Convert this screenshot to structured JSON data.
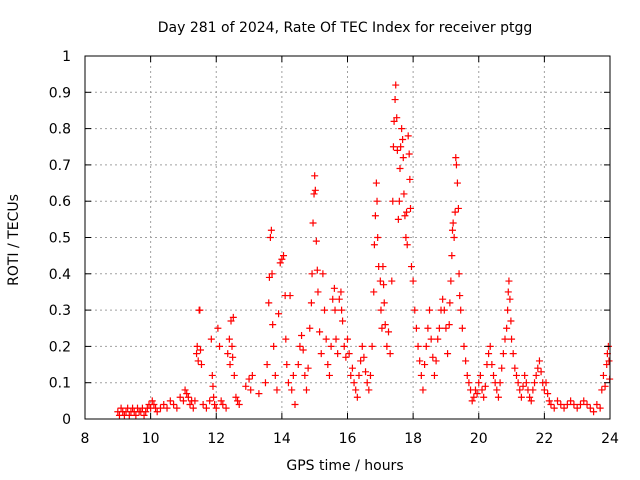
{
  "chart_data": {
    "type": "scatter",
    "title": "Day 281 of 2024, Rate Of TEC Index for receiver ptgg",
    "xlabel": "GPS time / hours",
    "ylabel": "ROTI / TECUs",
    "xlim": [
      8,
      24
    ],
    "ylim": [
      0,
      1
    ],
    "xticks": [
      8,
      10,
      12,
      14,
      16,
      18,
      20,
      22,
      24
    ],
    "yticks": [
      0,
      0.1,
      0.2,
      0.3,
      0.4,
      0.5,
      0.6,
      0.7,
      0.8,
      0.9,
      1
    ],
    "xtick_labels": [
      "8",
      "10",
      "12",
      "14",
      "16",
      "18",
      "20",
      "22",
      "24"
    ],
    "ytick_labels": [
      "0",
      "0.1",
      "0.2",
      "0.3",
      "0.4",
      "0.5",
      "0.6",
      "0.7",
      "0.8",
      "0.9",
      "1"
    ],
    "grid": true,
    "marker": "+",
    "series": [
      {
        "name": "ROTI",
        "color": "#ff0000",
        "points": [
          [
            9.0,
            0.02
          ],
          [
            9.05,
            0.01
          ],
          [
            9.1,
            0.03
          ],
          [
            9.15,
            0.02
          ],
          [
            9.2,
            0.01
          ],
          [
            9.25,
            0.02
          ],
          [
            9.3,
            0.03
          ],
          [
            9.35,
            0.01
          ],
          [
            9.4,
            0.02
          ],
          [
            9.45,
            0.03
          ],
          [
            9.5,
            0.02
          ],
          [
            9.55,
            0.01
          ],
          [
            9.6,
            0.03
          ],
          [
            9.65,
            0.02
          ],
          [
            9.7,
            0.02
          ],
          [
            9.75,
            0.03
          ],
          [
            9.8,
            0.01
          ],
          [
            9.85,
            0.02
          ],
          [
            9.9,
            0.03
          ],
          [
            9.95,
            0.04
          ],
          [
            10.0,
            0.03
          ],
          [
            10.05,
            0.05
          ],
          [
            10.1,
            0.04
          ],
          [
            10.15,
            0.03
          ],
          [
            10.2,
            0.02
          ],
          [
            10.3,
            0.03
          ],
          [
            10.4,
            0.04
          ],
          [
            10.5,
            0.03
          ],
          [
            10.6,
            0.05
          ],
          [
            10.7,
            0.04
          ],
          [
            10.8,
            0.03
          ],
          [
            10.9,
            0.06
          ],
          [
            11.0,
            0.05
          ],
          [
            11.05,
            0.08
          ],
          [
            11.1,
            0.07
          ],
          [
            11.15,
            0.06
          ],
          [
            11.2,
            0.04
          ],
          [
            11.25,
            0.05
          ],
          [
            11.3,
            0.03
          ],
          [
            11.35,
            0.05
          ],
          [
            11.4,
            0.18
          ],
          [
            11.42,
            0.2
          ],
          [
            11.45,
            0.16
          ],
          [
            11.48,
            0.3
          ],
          [
            11.5,
            0.3
          ],
          [
            11.52,
            0.19
          ],
          [
            11.55,
            0.15
          ],
          [
            11.6,
            0.04
          ],
          [
            11.7,
            0.03
          ],
          [
            11.8,
            0.05
          ],
          [
            11.85,
            0.22
          ],
          [
            11.88,
            0.12
          ],
          [
            11.9,
            0.09
          ],
          [
            11.92,
            0.06
          ],
          [
            11.95,
            0.04
          ],
          [
            12.0,
            0.03
          ],
          [
            12.05,
            0.25
          ],
          [
            12.1,
            0.2
          ],
          [
            12.15,
            0.05
          ],
          [
            12.2,
            0.04
          ],
          [
            12.3,
            0.03
          ],
          [
            12.35,
            0.18
          ],
          [
            12.4,
            0.22
          ],
          [
            12.42,
            0.15
          ],
          [
            12.45,
            0.27
          ],
          [
            12.48,
            0.2
          ],
          [
            12.5,
            0.17
          ],
          [
            12.52,
            0.28
          ],
          [
            12.55,
            0.12
          ],
          [
            12.6,
            0.06
          ],
          [
            12.65,
            0.05
          ],
          [
            12.7,
            0.04
          ],
          [
            12.9,
            0.09
          ],
          [
            13.0,
            0.11
          ],
          [
            13.05,
            0.08
          ],
          [
            13.1,
            0.12
          ],
          [
            13.3,
            0.07
          ],
          [
            13.5,
            0.1
          ],
          [
            13.55,
            0.15
          ],
          [
            13.6,
            0.32
          ],
          [
            13.62,
            0.39
          ],
          [
            13.65,
            0.5
          ],
          [
            13.68,
            0.52
          ],
          [
            13.7,
            0.4
          ],
          [
            13.72,
            0.26
          ],
          [
            13.75,
            0.2
          ],
          [
            13.8,
            0.12
          ],
          [
            13.85,
            0.08
          ],
          [
            13.9,
            0.29
          ],
          [
            13.95,
            0.43
          ],
          [
            14.0,
            0.44
          ],
          [
            14.05,
            0.45
          ],
          [
            14.1,
            0.34
          ],
          [
            14.12,
            0.22
          ],
          [
            14.15,
            0.15
          ],
          [
            14.2,
            0.1
          ],
          [
            14.25,
            0.34
          ],
          [
            14.3,
            0.08
          ],
          [
            14.35,
            0.12
          ],
          [
            14.4,
            0.04
          ],
          [
            14.5,
            0.15
          ],
          [
            14.55,
            0.2
          ],
          [
            14.6,
            0.23
          ],
          [
            14.65,
            0.19
          ],
          [
            14.7,
            0.12
          ],
          [
            14.75,
            0.08
          ],
          [
            14.8,
            0.14
          ],
          [
            14.85,
            0.25
          ],
          [
            14.9,
            0.32
          ],
          [
            14.92,
            0.4
          ],
          [
            14.95,
            0.54
          ],
          [
            14.98,
            0.62
          ],
          [
            15.0,
            0.67
          ],
          [
            15.02,
            0.63
          ],
          [
            15.05,
            0.49
          ],
          [
            15.08,
            0.41
          ],
          [
            15.1,
            0.35
          ],
          [
            15.15,
            0.24
          ],
          [
            15.2,
            0.18
          ],
          [
            15.25,
            0.4
          ],
          [
            15.3,
            0.3
          ],
          [
            15.35,
            0.22
          ],
          [
            15.4,
            0.15
          ],
          [
            15.45,
            0.12
          ],
          [
            15.5,
            0.2
          ],
          [
            15.55,
            0.33
          ],
          [
            15.6,
            0.36
          ],
          [
            15.62,
            0.3
          ],
          [
            15.65,
            0.22
          ],
          [
            15.7,
            0.18
          ],
          [
            15.75,
            0.33
          ],
          [
            15.8,
            0.35
          ],
          [
            15.82,
            0.3
          ],
          [
            15.85,
            0.27
          ],
          [
            15.9,
            0.2
          ],
          [
            15.95,
            0.17
          ],
          [
            16.0,
            0.22
          ],
          [
            16.05,
            0.18
          ],
          [
            16.1,
            0.12
          ],
          [
            16.15,
            0.14
          ],
          [
            16.2,
            0.1
          ],
          [
            16.25,
            0.08
          ],
          [
            16.3,
            0.06
          ],
          [
            16.35,
            0.12
          ],
          [
            16.4,
            0.16
          ],
          [
            16.45,
            0.2
          ],
          [
            16.5,
            0.17
          ],
          [
            16.55,
            0.13
          ],
          [
            16.6,
            0.1
          ],
          [
            16.65,
            0.08
          ],
          [
            16.7,
            0.12
          ],
          [
            16.75,
            0.2
          ],
          [
            16.8,
            0.35
          ],
          [
            16.82,
            0.48
          ],
          [
            16.85,
            0.56
          ],
          [
            16.88,
            0.65
          ],
          [
            16.9,
            0.6
          ],
          [
            16.92,
            0.5
          ],
          [
            16.95,
            0.42
          ],
          [
            17.0,
            0.38
          ],
          [
            17.02,
            0.3
          ],
          [
            17.05,
            0.25
          ],
          [
            17.08,
            0.42
          ],
          [
            17.1,
            0.37
          ],
          [
            17.12,
            0.32
          ],
          [
            17.15,
            0.26
          ],
          [
            17.2,
            0.2
          ],
          [
            17.25,
            0.24
          ],
          [
            17.3,
            0.18
          ],
          [
            17.35,
            0.38
          ],
          [
            17.38,
            0.6
          ],
          [
            17.4,
            0.75
          ],
          [
            17.42,
            0.82
          ],
          [
            17.45,
            0.88
          ],
          [
            17.47,
            0.92
          ],
          [
            17.5,
            0.83
          ],
          [
            17.52,
            0.74
          ],
          [
            17.55,
            0.55
          ],
          [
            17.58,
            0.6
          ],
          [
            17.6,
            0.69
          ],
          [
            17.62,
            0.75
          ],
          [
            17.65,
            0.8
          ],
          [
            17.68,
            0.77
          ],
          [
            17.7,
            0.72
          ],
          [
            17.72,
            0.62
          ],
          [
            17.75,
            0.56
          ],
          [
            17.78,
            0.5
          ],
          [
            17.8,
            0.57
          ],
          [
            17.82,
            0.48
          ],
          [
            17.85,
            0.78
          ],
          [
            17.88,
            0.73
          ],
          [
            17.9,
            0.66
          ],
          [
            17.92,
            0.58
          ],
          [
            17.95,
            0.42
          ],
          [
            18.0,
            0.38
          ],
          [
            18.05,
            0.3
          ],
          [
            18.1,
            0.25
          ],
          [
            18.15,
            0.2
          ],
          [
            18.2,
            0.16
          ],
          [
            18.25,
            0.12
          ],
          [
            18.3,
            0.08
          ],
          [
            18.35,
            0.15
          ],
          [
            18.4,
            0.2
          ],
          [
            18.45,
            0.25
          ],
          [
            18.5,
            0.3
          ],
          [
            18.55,
            0.22
          ],
          [
            18.6,
            0.17
          ],
          [
            18.65,
            0.12
          ],
          [
            18.7,
            0.16
          ],
          [
            18.75,
            0.22
          ],
          [
            18.8,
            0.25
          ],
          [
            18.85,
            0.3
          ],
          [
            18.9,
            0.33
          ],
          [
            18.95,
            0.3
          ],
          [
            19.0,
            0.25
          ],
          [
            19.05,
            0.18
          ],
          [
            19.1,
            0.26
          ],
          [
            19.12,
            0.32
          ],
          [
            19.15,
            0.38
          ],
          [
            19.18,
            0.45
          ],
          [
            19.2,
            0.52
          ],
          [
            19.22,
            0.54
          ],
          [
            19.25,
            0.5
          ],
          [
            19.28,
            0.57
          ],
          [
            19.3,
            0.72
          ],
          [
            19.32,
            0.7
          ],
          [
            19.35,
            0.65
          ],
          [
            19.38,
            0.58
          ],
          [
            19.4,
            0.4
          ],
          [
            19.42,
            0.34
          ],
          [
            19.45,
            0.3
          ],
          [
            19.5,
            0.25
          ],
          [
            19.55,
            0.2
          ],
          [
            19.6,
            0.16
          ],
          [
            19.65,
            0.12
          ],
          [
            19.7,
            0.1
          ],
          [
            19.75,
            0.08
          ],
          [
            19.8,
            0.05
          ],
          [
            19.85,
            0.06
          ],
          [
            19.9,
            0.08
          ],
          [
            19.95,
            0.07
          ],
          [
            20.0,
            0.1
          ],
          [
            20.05,
            0.12
          ],
          [
            20.1,
            0.08
          ],
          [
            20.15,
            0.06
          ],
          [
            20.2,
            0.09
          ],
          [
            20.25,
            0.15
          ],
          [
            20.3,
            0.18
          ],
          [
            20.35,
            0.2
          ],
          [
            20.4,
            0.15
          ],
          [
            20.45,
            0.12
          ],
          [
            20.5,
            0.1
          ],
          [
            20.55,
            0.08
          ],
          [
            20.6,
            0.06
          ],
          [
            20.65,
            0.1
          ],
          [
            20.7,
            0.14
          ],
          [
            20.75,
            0.18
          ],
          [
            20.8,
            0.22
          ],
          [
            20.85,
            0.25
          ],
          [
            20.88,
            0.3
          ],
          [
            20.9,
            0.35
          ],
          [
            20.92,
            0.38
          ],
          [
            20.95,
            0.33
          ],
          [
            20.98,
            0.27
          ],
          [
            21.0,
            0.22
          ],
          [
            21.05,
            0.18
          ],
          [
            21.1,
            0.14
          ],
          [
            21.15,
            0.12
          ],
          [
            21.2,
            0.1
          ],
          [
            21.25,
            0.08
          ],
          [
            21.3,
            0.06
          ],
          [
            21.35,
            0.09
          ],
          [
            21.4,
            0.12
          ],
          [
            21.45,
            0.1
          ],
          [
            21.5,
            0.08
          ],
          [
            21.55,
            0.06
          ],
          [
            21.6,
            0.05
          ],
          [
            21.65,
            0.08
          ],
          [
            21.7,
            0.1
          ],
          [
            21.75,
            0.12
          ],
          [
            21.8,
            0.14
          ],
          [
            21.85,
            0.16
          ],
          [
            21.9,
            0.13
          ],
          [
            21.95,
            0.1
          ],
          [
            22.0,
            0.08
          ],
          [
            22.05,
            0.1
          ],
          [
            22.1,
            0.07
          ],
          [
            22.15,
            0.05
          ],
          [
            22.2,
            0.04
          ],
          [
            22.3,
            0.03
          ],
          [
            22.4,
            0.05
          ],
          [
            22.5,
            0.04
          ],
          [
            22.6,
            0.03
          ],
          [
            22.7,
            0.04
          ],
          [
            22.8,
            0.05
          ],
          [
            22.9,
            0.04
          ],
          [
            23.0,
            0.03
          ],
          [
            23.1,
            0.04
          ],
          [
            23.2,
            0.05
          ],
          [
            23.3,
            0.04
          ],
          [
            23.4,
            0.03
          ],
          [
            23.5,
            0.02
          ],
          [
            23.6,
            0.04
          ],
          [
            23.7,
            0.03
          ],
          [
            23.75,
            0.08
          ],
          [
            23.8,
            0.12
          ],
          [
            23.85,
            0.09
          ],
          [
            23.9,
            0.15
          ],
          [
            23.92,
            0.18
          ],
          [
            23.95,
            0.2
          ],
          [
            23.97,
            0.16
          ],
          [
            23.99,
            0.11
          ]
        ]
      }
    ]
  }
}
